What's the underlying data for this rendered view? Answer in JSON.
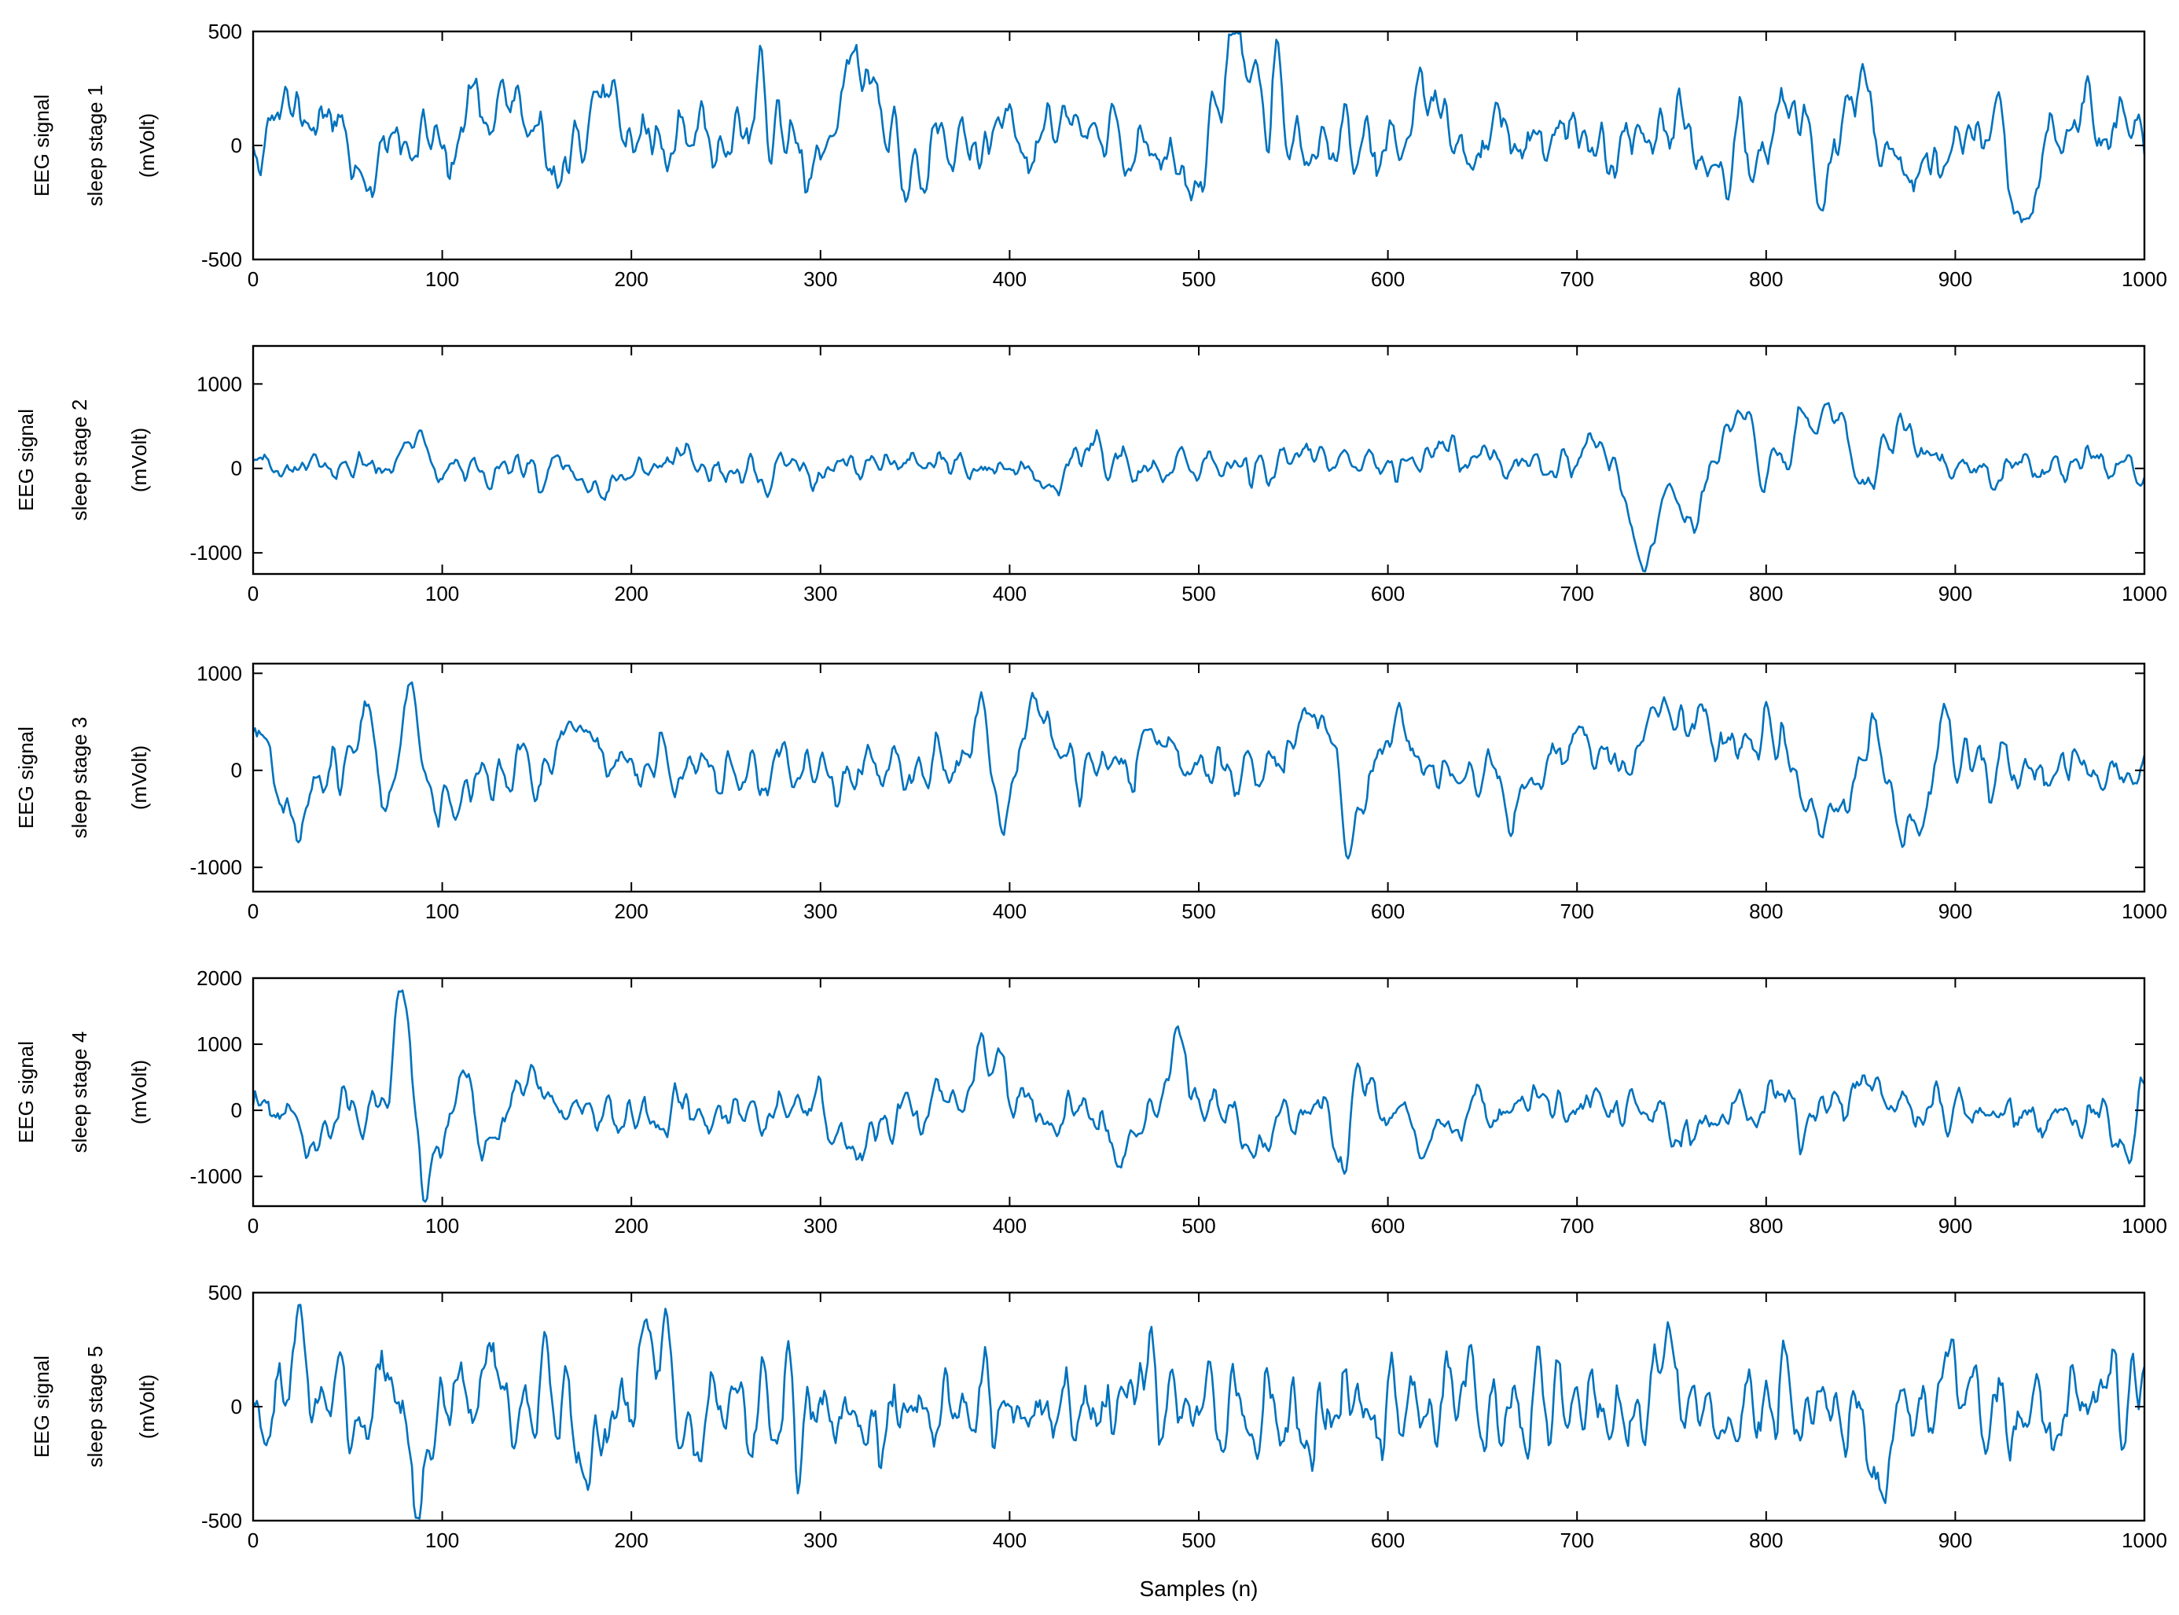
{
  "chart_data": {
    "type": "line",
    "line_color": "#0072BD",
    "xlabel": "Samples (n)",
    "n_samples": 1000,
    "xlim": [
      0,
      1000
    ],
    "xticks": [
      "0",
      "100",
      "200",
      "300",
      "400",
      "500",
      "600",
      "700",
      "800",
      "900",
      "1000"
    ],
    "panels": [
      {
        "ylabel": [
          "EEG signal",
          "sleep stage 1",
          "(mVolt)"
        ],
        "ylim": [
          -500,
          500
        ],
        "yticks": [
          {
            "value": -500,
            "label": "-500"
          },
          {
            "value": 0,
            "label": "0"
          },
          {
            "value": 500,
            "label": "500"
          }
        ],
        "seed": 11,
        "base_amp": 85,
        "features": [
          [
            18,
            150,
            30
          ],
          [
            42,
            110,
            25
          ],
          [
            60,
            -140,
            20
          ],
          [
            120,
            110,
            28
          ],
          [
            135,
            160,
            25
          ],
          [
            160,
            -110,
            25
          ],
          [
            192,
            170,
            20
          ],
          [
            270,
            120,
            40
          ],
          [
            300,
            -250,
            25
          ],
          [
            310,
            250,
            30
          ],
          [
            324,
            230,
            30
          ],
          [
            345,
            -150,
            20
          ],
          [
            430,
            110,
            20
          ],
          [
            500,
            -210,
            20
          ],
          [
            517,
            200,
            30
          ],
          [
            525,
            260,
            30
          ],
          [
            620,
            190,
            20
          ],
          [
            750,
            190,
            25
          ],
          [
            772,
            -130,
            20
          ],
          [
            818,
            180,
            25
          ],
          [
            830,
            -260,
            20
          ],
          [
            850,
            300,
            30
          ],
          [
            870,
            -130,
            30
          ],
          [
            925,
            160,
            20
          ],
          [
            935,
            -390,
            15
          ],
          [
            960,
            150,
            20
          ],
          [
            987,
            140,
            20
          ]
        ]
      },
      {
        "ylabel": [
          "EEG signal",
          "sleep stage 2",
          "(mVolt)"
        ],
        "ylim": [
          -1250,
          1450
        ],
        "yticks": [
          {
            "value": -1000,
            "label": "-1000"
          },
          {
            "value": 0,
            "label": "0"
          },
          {
            "value": 1000,
            "label": "1000"
          }
        ],
        "seed": 23,
        "base_amp": 110,
        "features": [
          [
            85,
            300,
            15
          ],
          [
            185,
            -220,
            15
          ],
          [
            270,
            -240,
            15
          ],
          [
            420,
            -250,
            15
          ],
          [
            440,
            280,
            20
          ],
          [
            560,
            300,
            20
          ],
          [
            630,
            350,
            20
          ],
          [
            720,
            550,
            40
          ],
          [
            732,
            -800,
            35
          ],
          [
            740,
            -1100,
            25
          ],
          [
            748,
            1300,
            20
          ],
          [
            755,
            -900,
            20
          ],
          [
            762,
            300,
            20
          ],
          [
            770,
            -550,
            30
          ],
          [
            782,
            600,
            30
          ],
          [
            792,
            500,
            30
          ],
          [
            800,
            -650,
            30
          ],
          [
            818,
            500,
            40
          ],
          [
            840,
            750,
            20
          ],
          [
            848,
            -550,
            20
          ],
          [
            870,
            400,
            30
          ]
        ]
      },
      {
        "ylabel": [
          "EEG signal",
          "sleep stage 3",
          "(mVolt)"
        ],
        "ylim": [
          -1250,
          1100
        ],
        "yticks": [
          {
            "value": -1000,
            "label": "-1000"
          },
          {
            "value": 0,
            "label": "0"
          },
          {
            "value": 1000,
            "label": "1000"
          }
        ],
        "seed": 37,
        "base_amp": 140,
        "features": [
          [
            5,
            450,
            20
          ],
          [
            22,
            -500,
            25
          ],
          [
            64,
            900,
            20
          ],
          [
            70,
            -1050,
            15
          ],
          [
            82,
            650,
            25
          ],
          [
            100,
            -600,
            20
          ],
          [
            172,
            450,
            30
          ],
          [
            389,
            800,
            20
          ],
          [
            395,
            -1000,
            15
          ],
          [
            415,
            650,
            20
          ],
          [
            480,
            350,
            30
          ],
          [
            560,
            500,
            30
          ],
          [
            580,
            -750,
            15
          ],
          [
            605,
            500,
            20
          ],
          [
            670,
            -300,
            40
          ],
          [
            700,
            400,
            30
          ],
          [
            745,
            500,
            30
          ],
          [
            765,
            400,
            30
          ],
          [
            800,
            500,
            30
          ],
          [
            830,
            -600,
            30
          ],
          [
            860,
            650,
            20
          ],
          [
            868,
            -950,
            15
          ],
          [
            882,
            -1150,
            15
          ],
          [
            888,
            700,
            20
          ]
        ]
      },
      {
        "ylabel": [
          "EEG signal",
          "sleep stage 4",
          "(mVolt)"
        ],
        "ylim": [
          -1450,
          2000
        ],
        "yticks": [
          {
            "value": -1000,
            "label": "-1000"
          },
          {
            "value": 0,
            "label": "0"
          },
          {
            "value": 1000,
            "label": "1000"
          },
          {
            "value": 2000,
            "label": "2000"
          }
        ],
        "seed": 53,
        "base_amp": 190,
        "features": [
          [
            30,
            -600,
            20
          ],
          [
            80,
            1900,
            15
          ],
          [
            88,
            -1100,
            15
          ],
          [
            100,
            -900,
            20
          ],
          [
            112,
            1100,
            20
          ],
          [
            122,
            -900,
            20
          ],
          [
            145,
            450,
            20
          ],
          [
            320,
            -700,
            20
          ],
          [
            390,
            800,
            20
          ],
          [
            460,
            -600,
            30
          ],
          [
            490,
            800,
            20
          ],
          [
            530,
            -900,
            15
          ],
          [
            577,
            -1400,
            10
          ],
          [
            583,
            700,
            20
          ],
          [
            620,
            -300,
            30
          ],
          [
            760,
            -400,
            30
          ],
          [
            850,
            550,
            20
          ],
          [
            990,
            -700,
            15
          ],
          [
            1000,
            400,
            15
          ]
        ]
      },
      {
        "ylabel": [
          "EEG signal",
          "sleep stage 5",
          "(mVolt)"
        ],
        "ylim": [
          -500,
          500
        ],
        "yticks": [
          {
            "value": -500,
            "label": "-500"
          },
          {
            "value": 0,
            "label": "0"
          },
          {
            "value": 500,
            "label": "500"
          }
        ],
        "seed": 71,
        "base_amp": 110,
        "features": [
          [
            24,
            360,
            10
          ],
          [
            60,
            -250,
            15
          ],
          [
            65,
            280,
            15
          ],
          [
            88,
            -260,
            20
          ],
          [
            125,
            250,
            15
          ],
          [
            172,
            -250,
            15
          ],
          [
            208,
            340,
            10
          ],
          [
            218,
            360,
            10
          ],
          [
            228,
            -240,
            15
          ],
          [
            560,
            -240,
            15
          ],
          [
            750,
            240,
            15
          ],
          [
            860,
            -320,
            15
          ],
          [
            900,
            220,
            15
          ]
        ]
      }
    ]
  }
}
